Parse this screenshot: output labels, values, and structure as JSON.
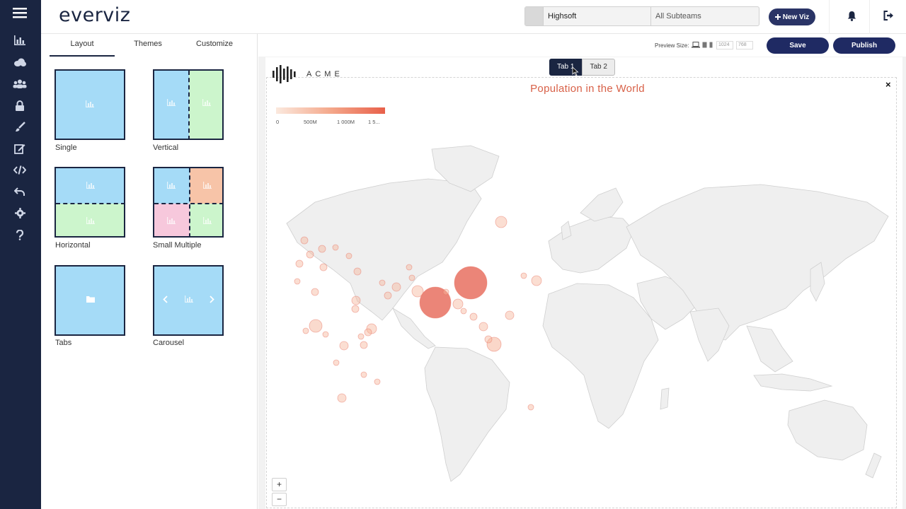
{
  "app": {
    "logo": "everviz"
  },
  "rail": {
    "icons": [
      "charts-icon",
      "cloud-icon",
      "team-icon",
      "lock-icon",
      "brush-icon",
      "edit-icon",
      "code-icon",
      "undo-icon",
      "settings-icon",
      "help-icon"
    ]
  },
  "topbar": {
    "team": "Highsoft",
    "subteam": "All Subteams",
    "new_viz_label": "New Viz"
  },
  "panel": {
    "tabs": [
      "Layout",
      "Themes",
      "Customize"
    ],
    "active_tab": "Layout",
    "layouts": [
      "Single",
      "Vertical",
      "Horizontal",
      "Small Multiple",
      "Tabs",
      "Carousel"
    ]
  },
  "toolbar": {
    "preview_label": "Preview Size:",
    "width_placeholder": "1024",
    "height_placeholder": "768",
    "save_label": "Save",
    "publish_label": "Publish"
  },
  "canvas": {
    "brand": "ACME",
    "tabs": [
      "Tab 1",
      "Tab 2"
    ],
    "active_tab": "Tab 1",
    "close_symbol": "×",
    "zoom_in": "+",
    "zoom_out": "−"
  },
  "chart_data": {
    "type": "bubble-map",
    "title": "Population in the World",
    "color_axis": {
      "ticks": [
        "0",
        "500M",
        "1 000M",
        "1 5..."
      ],
      "color_min": "#fbe9de",
      "color_max": "#e8604a"
    },
    "bubbles_note_visible_largest": [
      "China",
      "India"
    ],
    "colors": {
      "land": "#efefef",
      "border": "#cfcfcf",
      "bubble_small": "#f6b69c",
      "bubble_large": "#e87060"
    }
  }
}
